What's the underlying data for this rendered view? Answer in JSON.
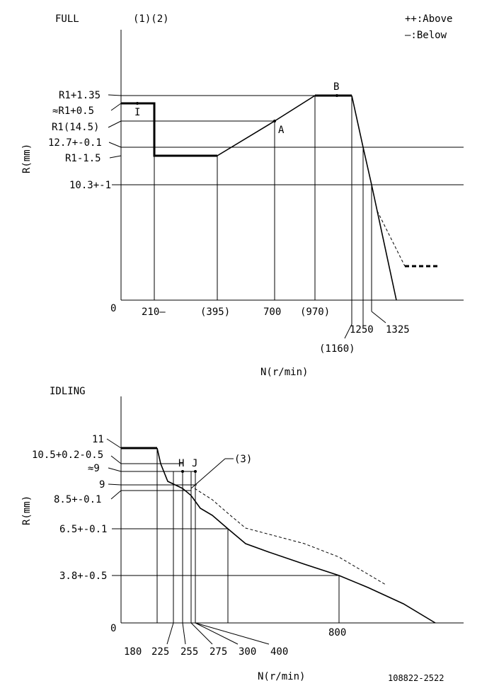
{
  "legend": {
    "above": "++:Above",
    "below": "—:Below"
  },
  "full": {
    "title": "FULL",
    "notes": "(1)(2)",
    "ylabel": "R(mm)",
    "xlabel": "N(r/min)",
    "origin": "0",
    "ylabels": [
      "R1+1.35",
      "≈R1+0.5",
      "R1(14.5)",
      "12.7+-0.1",
      "R1-1.5",
      "10.3+-1"
    ],
    "xlabels": [
      "210—",
      "(395)",
      "700",
      "(970)",
      "(1160)",
      "1250",
      "1325"
    ],
    "points": {
      "I": "I",
      "A": "A",
      "B": "B"
    }
  },
  "idling": {
    "title": "IDLING",
    "ylabel": "R(mm)",
    "xlabel": "N(r/min)",
    "origin": "0",
    "ylabels": [
      "11",
      "10.5+0.2-0.5",
      "≈9",
      "9",
      "8.5+-0.1",
      "6.5+-0.1",
      "3.8+-0.5"
    ],
    "xlabels": [
      "180",
      "225",
      "255",
      "275",
      "300",
      "400",
      "800"
    ],
    "points": {
      "H": "H",
      "J": "J",
      "note3": "(3)"
    }
  },
  "doc_id": "108822-2522"
}
